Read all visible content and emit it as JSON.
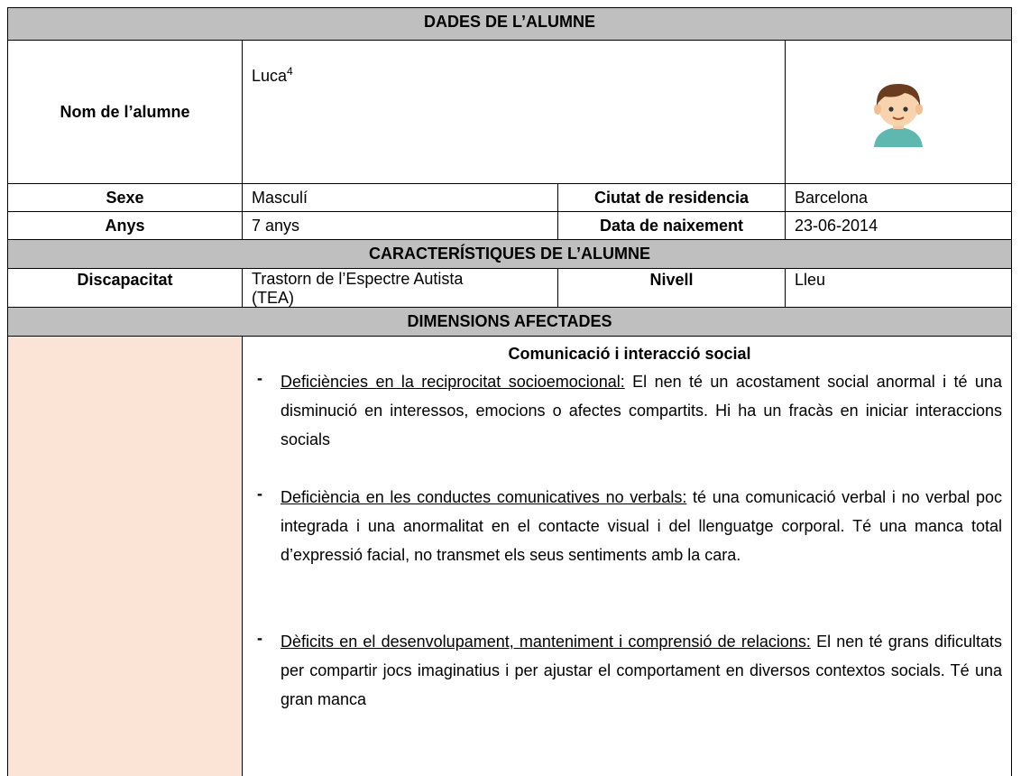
{
  "header": {
    "title": "DADES DE L’ALUMNE"
  },
  "student": {
    "name_label": "Nom de l’alumne",
    "name": "Luca",
    "name_note": "4",
    "sex_label": "Sexe",
    "sex": "Masculí",
    "city_label": "Ciutat de residencia",
    "city": "Barcelona",
    "age_label": "Anys",
    "age": "7 anys",
    "birth_label": "Data de naixement",
    "birth": "23-06-2014"
  },
  "characteristics": {
    "title": "CARACTERÍSTIQUES DE L’ALUMNE",
    "disability_label": "Discapacitat",
    "disability": "Trastorn de l’Espectre Autista (TEA)",
    "level_label": "Nivell",
    "level": "Lleu"
  },
  "dimensions": {
    "title": "DIMENSIONS AFECTADES",
    "sections": [
      {
        "heading": "Comunicació i interacció social",
        "items": [
          {
            "bullet": "-",
            "term": "Deficiències en la reciprocitat socioemocional:",
            "text": "El nen té un acostament social anormal i té una disminució en interessos, emocions o afectes compartits. Hi ha un fracàs en iniciar interaccions socials"
          },
          {
            "bullet": "-",
            "term": "Deficiència en les conductes comunicatives no verbals:",
            "text": "té una comunicació verbal i no verbal poc integrada i una anormalitat en el contacte visual i del llenguatge corporal. Té una manca total d’expressió facial, no transmet els seus sentiments amb la cara."
          },
          {
            "bullet": "-",
            "term": "Dèficits en el desenvolupament, manteniment i comprensió de relacions:",
            "text": "El nen té grans dificultats per compartir jocs imaginatius i per ajustar el comportament en diversos contextos socials. Té una gran manca"
          }
        ]
      }
    ]
  }
}
